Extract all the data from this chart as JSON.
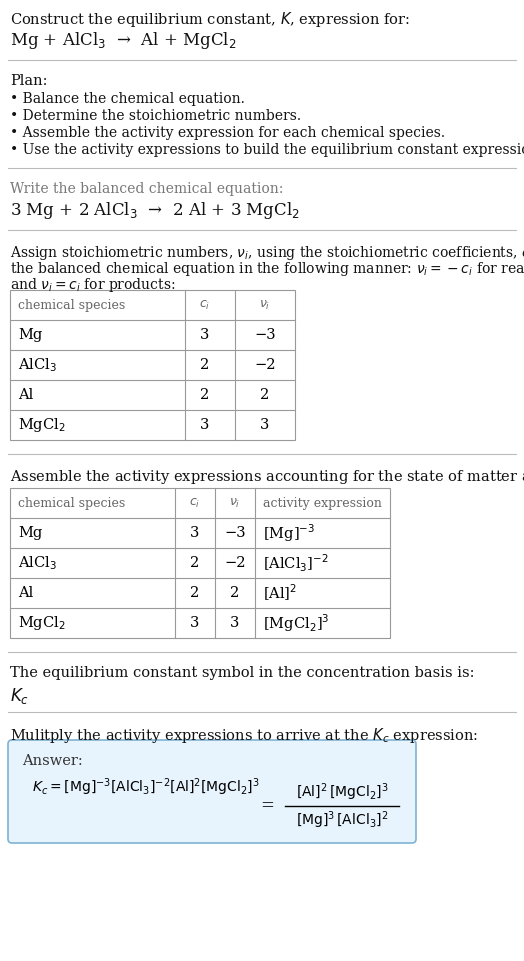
{
  "bg_color": "#ffffff",
  "separator_color": "#bbbbbb",
  "table_border_color": "#999999",
  "answer_box_bg": "#e8f4fd",
  "answer_box_border": "#7fb3d3",
  "text_dark": "#111111",
  "text_gray": "#666666",
  "sections": {
    "s1_line1": "Construct the equilibrium constant, $K$, expression for:",
    "s1_line2": "Mg + AlCl$_3$  →  Al + MgCl$_2$",
    "s2_header": "Plan:",
    "s2_items": [
      "• Balance the chemical equation.",
      "• Determine the stoichiometric numbers.",
      "• Assemble the activity expression for each chemical species.",
      "• Use the activity expressions to build the equilibrium constant expression."
    ],
    "s3_header": "Write the balanced chemical equation:",
    "s3_eq": "3 Mg + 2 AlCl$_3$  →  2 Al + 3 MgCl$_2$",
    "s4_line1": "Assign stoichiometric numbers, $\\nu_i$, using the stoichiometric coefficients, $c_i$, from",
    "s4_line2": "the balanced chemical equation in the following manner: $\\nu_i = -c_i$ for reactants",
    "s4_line3": "and $\\nu_i = c_i$ for products:",
    "table1_headers": [
      "chemical species",
      "$c_i$",
      "$\\nu_i$"
    ],
    "table1_rows": [
      [
        "Mg",
        "3",
        "−3"
      ],
      [
        "AlCl$_3$",
        "2",
        "−2"
      ],
      [
        "Al",
        "2",
        "2"
      ],
      [
        "MgCl$_2$",
        "3",
        "3"
      ]
    ],
    "s5_header": "Assemble the activity expressions accounting for the state of matter and $\\nu_i$:",
    "table2_headers": [
      "chemical species",
      "$c_i$",
      "$\\nu_i$",
      "activity expression"
    ],
    "table2_rows": [
      [
        "Mg",
        "3",
        "−3",
        "[Mg]$^{-3}$"
      ],
      [
        "AlCl$_3$",
        "2",
        "−2",
        "[AlCl$_3$]$^{-2}$"
      ],
      [
        "Al",
        "2",
        "2",
        "[Al]$^2$"
      ],
      [
        "MgCl$_2$",
        "3",
        "3",
        "[MgCl$_2$]$^3$"
      ]
    ],
    "s6_header": "The equilibrium constant symbol in the concentration basis is:",
    "s6_symbol": "$K_c$",
    "s7_header": "Mulitply the activity expressions to arrive at the $K_c$ expression:",
    "answer_label": "Answer:",
    "kc_full": "$K_c = [\\mathrm{Mg}]^{-3}\\,[\\mathrm{AlCl_3}]^{-2}\\,[\\mathrm{Al}]^2\\,[\\mathrm{MgCl_2}]^3$",
    "kc_num": "$[\\mathrm{Al}]^2\\,[\\mathrm{MgCl_2}]^3$",
    "kc_den": "$[\\mathrm{Mg}]^3\\,[\\mathrm{AlCl_3}]^2$"
  }
}
